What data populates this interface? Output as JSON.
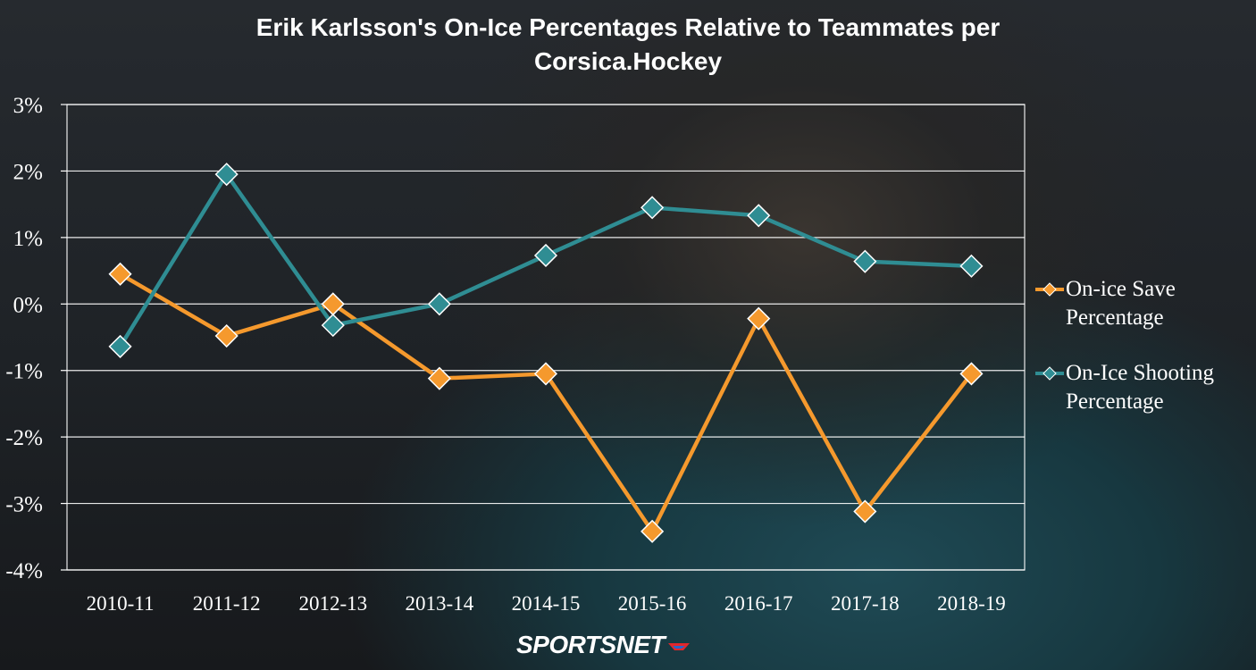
{
  "title_line1": "Erik Karlsson's On-Ice Percentages Relative to Teammates per",
  "title_line2": "Corsica.Hockey",
  "logo_text": "SPORTSNET",
  "colors": {
    "save": "#f5992d",
    "shooting": "#2f8d93",
    "grid": "#ffffff",
    "text": "#ffffff"
  },
  "chart_data": {
    "type": "line",
    "title": "Erik Karlsson's On-Ice Percentages Relative to Teammates per Corsica.Hockey",
    "categories": [
      "2010-11",
      "2011-12",
      "2012-13",
      "2013-14",
      "2014-15",
      "2015-16",
      "2016-17",
      "2017-18",
      "2018-19"
    ],
    "ylim": [
      -4,
      3
    ],
    "yticks": [
      "3%",
      "2%",
      "1%",
      "0%",
      "-1%",
      "-2%",
      "-3%",
      "-4%"
    ],
    "grid": true,
    "legend_position": "right",
    "series": [
      {
        "name": "On-ice Save Percentage",
        "marker": "diamond",
        "values": [
          0.45,
          -0.48,
          0.0,
          -1.12,
          -1.05,
          -3.42,
          -0.22,
          -3.12,
          -1.05
        ]
      },
      {
        "name": "On-Ice Shooting Percentage",
        "marker": "diamond",
        "values": [
          -0.64,
          1.95,
          -0.32,
          0.0,
          0.73,
          1.45,
          1.33,
          0.64,
          0.57
        ]
      }
    ]
  }
}
